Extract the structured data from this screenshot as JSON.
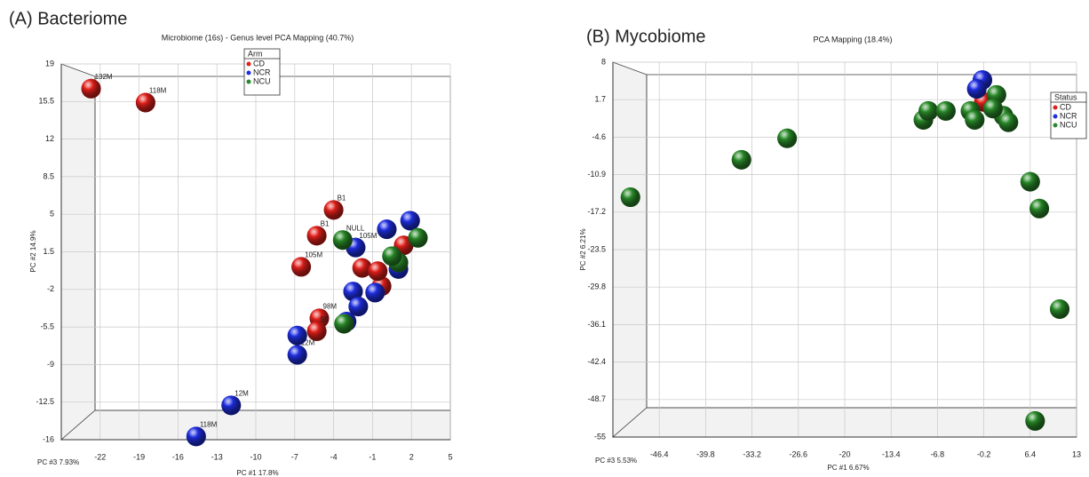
{
  "chart_data": [
    {
      "type": "scatter",
      "panel_label": "(A) Bacteriome",
      "title": "Microbiome (16s) - Genus level PCA Mapping (40.7%)",
      "xlabel": "PC #1 17.8%",
      "ylabel": "PC #2 14.9%",
      "zlabel": "PC #3 7.93%",
      "xlim": [
        -25,
        5
      ],
      "ylim": [
        -16,
        19
      ],
      "xticks": [
        -22,
        -19,
        -16,
        -13,
        -10,
        -7,
        -4,
        -1,
        2,
        5
      ],
      "yticks": [
        19,
        15.5,
        12,
        8.5,
        5,
        1.5,
        -2,
        -5.5,
        -9,
        -12.5,
        -16
      ],
      "grid": true,
      "legend_title": "Arm",
      "series": [
        {
          "name": "CD",
          "color": "#e0201b",
          "x": [
            -22.7,
            -18.5,
            -4.0,
            -5.3,
            -6.5,
            -1.8,
            -0.3,
            -5.1,
            -5.3,
            1.4,
            -0.6
          ],
          "y": [
            16.7,
            15.4,
            5.4,
            3.0,
            0.1,
            0,
            -1.7,
            -4.7,
            -5.9,
            2.1,
            -0.3
          ],
          "labels": [
            "132M",
            "118M",
            "B1",
            "B1",
            "105M",
            null,
            null,
            "98M",
            "98",
            null,
            null
          ]
        },
        {
          "name": "NCR",
          "color": "#1f2ee0",
          "x": [
            -14.6,
            -11.9,
            -6.8,
            -6.8,
            -2.3,
            -2.5,
            -2.1,
            -3.0,
            -0.8,
            0.1,
            1.0,
            1.9
          ],
          "y": [
            -15.7,
            -12.8,
            -8.1,
            -6.3,
            1.9,
            -2.2,
            -3.6,
            -5.0,
            -2.3,
            3.6,
            -0.1,
            4.4
          ],
          "labels": [
            "118M",
            "12M",
            "12M",
            null,
            "105M",
            null,
            null,
            null,
            null,
            null,
            null,
            null
          ]
        },
        {
          "name": "NCU",
          "color": "#2a8a2a",
          "x": [
            -3.3,
            -3.2,
            1.0,
            2.5,
            0.5
          ],
          "y": [
            2.6,
            -5.2,
            0.5,
            2.8,
            1.1
          ],
          "labels": [
            "NULL",
            null,
            null,
            null,
            null
          ]
        }
      ]
    },
    {
      "type": "scatter",
      "panel_label": "(B) Mycobiome",
      "title": "PCA Mapping (18.4%)",
      "xlabel": "PC #1 6.67%",
      "ylabel": "PC #2 6.21%",
      "zlabel": "PC #3 5.53%",
      "xlim": [
        -53,
        13
      ],
      "ylim": [
        -55,
        8
      ],
      "xticks": [
        -46.4,
        -39.8,
        -33.2,
        -26.6,
        -20,
        -13.4,
        -6.8,
        -0.2,
        6.4,
        13
      ],
      "yticks": [
        8,
        1.7,
        -4.6,
        -10.9,
        -17.2,
        -23.5,
        -29.8,
        -36.1,
        -42.4,
        -48.7,
        -55
      ],
      "grid": true,
      "legend_title": "Status",
      "series": [
        {
          "name": "CD",
          "color": "#e0201b",
          "x": [
            -0.2
          ],
          "y": [
            1.3
          ]
        },
        {
          "name": "NCR",
          "color": "#1f2ee0",
          "x": [
            -0.4,
            -1.2
          ],
          "y": [
            5.0,
            3.5
          ]
        },
        {
          "name": "NCU",
          "color": "#2a8a2a",
          "x": [
            -50.5,
            -34.7,
            -28.2,
            -8.8,
            -8.1,
            -5.6,
            -2.1,
            -1.5,
            1.6,
            2.6,
            3.3,
            6.4,
            7.7,
            10.6,
            7.1,
            1.1
          ],
          "y": [
            -14.7,
            -8.4,
            -4.8,
            -1.7,
            -0.2,
            -0.2,
            -0.2,
            -1.7,
            2.5,
            -1.0,
            -2.1,
            -12.1,
            -16.6,
            -33.5,
            -52.3,
            0.2
          ]
        }
      ]
    }
  ]
}
